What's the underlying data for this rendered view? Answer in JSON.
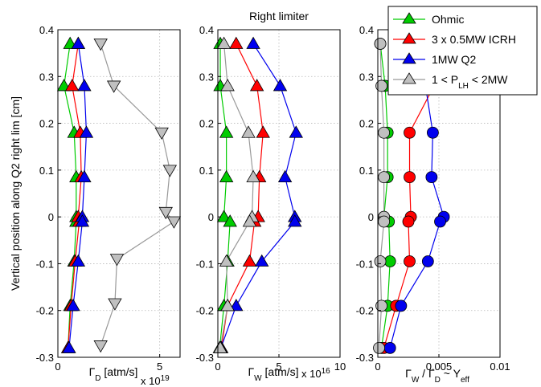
{
  "chart_data": [
    {
      "type": "line",
      "title": "",
      "xlabel": "Γ_D [atm/s]",
      "x_multiplier": "x 10^19",
      "ylabel": "Vertical position along Q2 right lim [cm]",
      "xlim": [
        0,
        6
      ],
      "ylim": [
        -0.3,
        0.4
      ],
      "xticks": [
        "0",
        "5"
      ],
      "yticks": [
        "-0.3",
        "-0.2",
        "-0.1",
        "0",
        "0.1",
        "0.2",
        "0.3",
        "0.4"
      ],
      "grid": true,
      "series": [
        {
          "name": "Ohmic",
          "marker": "triangle-up",
          "color": "#00cc00",
          "points": [
            [
              0.6,
              0.37
            ],
            [
              0.3,
              0.28
            ],
            [
              0.8,
              0.18
            ],
            [
              0.9,
              0.085
            ],
            [
              0.9,
              0
            ],
            [
              0.9,
              -0.01
            ],
            [
              0.8,
              -0.095
            ],
            [
              0.6,
              -0.19
            ],
            [
              0.5,
              -0.28
            ]
          ]
        },
        {
          "name": "3 x 0.5MW ICRH",
          "marker": "triangle-up",
          "color": "#ff0000",
          "points": [
            [
              1.0,
              0.37
            ],
            [
              0.7,
              0.28
            ],
            [
              1.1,
              0.18
            ],
            [
              1.15,
              0.085
            ],
            [
              1.0,
              0
            ],
            [
              1.05,
              -0.01
            ],
            [
              0.85,
              -0.095
            ],
            [
              0.65,
              -0.19
            ],
            [
              0.5,
              -0.28
            ]
          ]
        },
        {
          "name": "1MW Q2",
          "marker": "triangle-up",
          "color": "#0000ee",
          "points": [
            [
              1.0,
              0.37
            ],
            [
              1.3,
              0.28
            ],
            [
              1.4,
              0.18
            ],
            [
              1.3,
              0.085
            ],
            [
              1.2,
              0
            ],
            [
              1.2,
              -0.01
            ],
            [
              1.0,
              -0.095
            ],
            [
              0.75,
              -0.19
            ],
            [
              0.55,
              -0.28
            ]
          ]
        },
        {
          "name": "1 < P_LH < 2MW",
          "marker": "triangle-down",
          "color": "#c0c0c0",
          "points": [
            [
              2.1,
              0.37
            ],
            [
              2.75,
              0.28
            ],
            [
              5.1,
              0.18
            ],
            [
              5.5,
              0.1
            ],
            [
              5.3,
              0.01
            ],
            [
              5.7,
              -0.01
            ],
            [
              2.9,
              -0.09
            ],
            [
              2.8,
              -0.185
            ],
            [
              2.1,
              -0.275
            ]
          ]
        }
      ]
    },
    {
      "type": "line",
      "title": "Right limiter",
      "xlabel": "Γ_W [atm/s]",
      "x_multiplier": "x 10^16",
      "ylabel": "",
      "xlim": [
        0,
        10
      ],
      "ylim": [
        -0.3,
        0.4
      ],
      "xticks": [
        "0",
        "5",
        "10"
      ],
      "yticks": [
        "-0.3",
        "-0.2",
        "-0.1",
        "0",
        "0.1",
        "0.2",
        "0.3",
        "0.4"
      ],
      "grid": true,
      "series": [
        {
          "name": "Ohmic",
          "marker": "triangle-up",
          "color": "#00cc00",
          "points": [
            [
              0.2,
              0.37
            ],
            [
              0.2,
              0.28
            ],
            [
              0.7,
              0.18
            ],
            [
              0.7,
              0.085
            ],
            [
              0.5,
              0
            ],
            [
              1.0,
              -0.01
            ],
            [
              0.8,
              -0.095
            ],
            [
              0.5,
              -0.19
            ],
            [
              0.15,
              -0.28
            ]
          ]
        },
        {
          "name": "3 x 0.5MW ICRH",
          "marker": "triangle-up",
          "color": "#ff0000",
          "points": [
            [
              1.5,
              0.37
            ],
            [
              3.2,
              0.28
            ],
            [
              3.7,
              0.18
            ],
            [
              3.4,
              0.085
            ],
            [
              3.3,
              0
            ],
            [
              3.0,
              -0.01
            ],
            [
              2.6,
              -0.095
            ],
            [
              0.8,
              -0.19
            ],
            [
              0.3,
              -0.28
            ]
          ]
        },
        {
          "name": "1MW Q2",
          "marker": "triangle-up",
          "color": "#0000ee",
          "points": [
            [
              2.9,
              0.37
            ],
            [
              5.1,
              0.28
            ],
            [
              6.4,
              0.18
            ],
            [
              5.5,
              0.085
            ],
            [
              6.3,
              0
            ],
            [
              6.3,
              -0.01
            ],
            [
              3.6,
              -0.095
            ],
            [
              1.5,
              -0.19
            ],
            [
              0.25,
              -0.28
            ]
          ]
        },
        {
          "name": "1 < P_LH < 2MW",
          "marker": "triangle-up",
          "color": "#c0c0c0",
          "points": [
            [
              0.5,
              0.37
            ],
            [
              0.8,
              0.28
            ],
            [
              2.5,
              0.18
            ],
            [
              2.9,
              0.085
            ],
            [
              2.8,
              0
            ],
            [
              2.6,
              -0.01
            ],
            [
              0.7,
              -0.095
            ],
            [
              0.8,
              -0.19
            ],
            [
              0.2,
              -0.28
            ]
          ]
        }
      ]
    },
    {
      "type": "line",
      "title": "",
      "xlabel": "Γ_W / Γ_D ~ Y_eff",
      "ylabel": "",
      "xlim": [
        0,
        0.01
      ],
      "ylim": [
        -0.3,
        0.4
      ],
      "xticks": [
        "0",
        "0.005",
        "0.01"
      ],
      "yticks": [
        "-0.3",
        "-0.2",
        "-0.1",
        "0",
        "0.1",
        "0.2",
        "0.3",
        "0.4"
      ],
      "grid": true,
      "series": [
        {
          "name": "Ohmic",
          "marker": "circle",
          "color": "#00cc00",
          "points": [
            [
              0.0002,
              0.37
            ],
            [
              0.0006,
              0.28
            ],
            [
              0.0008,
              0.18
            ],
            [
              0.0008,
              0.085
            ],
            [
              0.0005,
              0
            ],
            [
              0.0009,
              -0.01
            ],
            [
              0.001,
              -0.095
            ],
            [
              0.0008,
              -0.19
            ],
            [
              0.0003,
              -0.28
            ]
          ]
        },
        {
          "name": "3 x 0.5MW ICRH",
          "marker": "circle",
          "color": "#ff0000",
          "points": [
            [
              0.0015,
              0.37
            ],
            [
              0.0046,
              0.28
            ],
            [
              0.0026,
              0.18
            ],
            [
              0.0026,
              0.085
            ],
            [
              0.0027,
              0
            ],
            [
              0.0025,
              -0.01
            ],
            [
              0.0026,
              -0.095
            ],
            [
              0.0015,
              -0.19
            ],
            [
              0.0005,
              -0.28
            ]
          ]
        },
        {
          "name": "1MW Q2",
          "marker": "circle",
          "color": "#0000ee",
          "points": [
            [
              0.0029,
              0.37
            ],
            [
              0.0039,
              0.28
            ],
            [
              0.0045,
              0.18
            ],
            [
              0.0044,
              0.085
            ],
            [
              0.0054,
              0
            ],
            [
              0.0051,
              -0.01
            ],
            [
              0.0041,
              -0.095
            ],
            [
              0.0019,
              -0.19
            ],
            [
              0.001,
              -0.28
            ]
          ]
        },
        {
          "name": "1 < P_LH < 2MW",
          "marker": "circle",
          "color": "#c0c0c0",
          "points": [
            [
              0.0002,
              0.37
            ],
            [
              0.0003,
              0.28
            ],
            [
              0.0005,
              0.18
            ],
            [
              0.0005,
              0.085
            ],
            [
              0.0005,
              0
            ],
            [
              0.0005,
              -0.01
            ],
            [
              0.0002,
              -0.095
            ],
            [
              0.0003,
              -0.19
            ],
            [
              0.0001,
              -0.28
            ]
          ]
        }
      ]
    }
  ],
  "legend": {
    "placement": "top-right",
    "entries": [
      {
        "label": "Ohmic",
        "color": "#00cc00"
      },
      {
        "label": "3 x 0.5MW ICRH",
        "color": "#ff0000"
      },
      {
        "label": "1MW Q2",
        "color": "#0000ee"
      },
      {
        "label_parts": [
          "1 < P",
          "LH",
          " < 2MW"
        ],
        "color": "#c0c0c0"
      }
    ]
  },
  "panel_text": {
    "p1_xlabel_main": "Γ",
    "p1_xlabel_sub": "D",
    "p1_xlabel_unit": " [atm/s]",
    "p1_mult_base": "x 10",
    "p1_mult_exp": "19",
    "p2_xlabel_main": "Γ",
    "p2_xlabel_sub": "W",
    "p2_xlabel_unit": " [atm/s]",
    "p2_mult_base": "x 10",
    "p2_mult_exp": "16",
    "p3_x_a": "Γ",
    "p3_x_a_sub": "W",
    "p3_x_b": " / Γ",
    "p3_x_b_sub": "D",
    "p3_x_c": " ~ Y",
    "p3_x_c_sub": "eff"
  }
}
